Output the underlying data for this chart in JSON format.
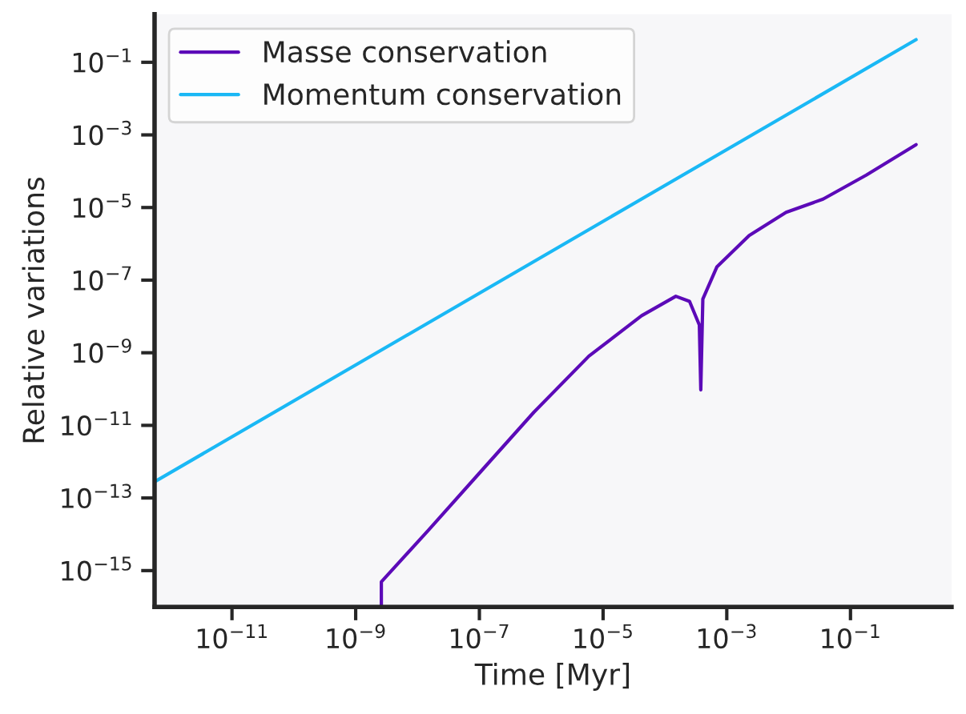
{
  "chart_data": {
    "type": "line",
    "xlabel": "Time [Myr]",
    "ylabel": "Relative variations",
    "log": "xy",
    "grid": false,
    "legend": "top left",
    "xlim": [
      5.6e-13,
      4.3
    ],
    "ylim": [
      1e-16,
      2.1
    ],
    "xticks": [
      {
        "value": 1e-11,
        "label": "10$^{−11}$"
      },
      {
        "value": 1e-09,
        "label": "10$^{−9}$"
      },
      {
        "value": 1e-07,
        "label": "10$^{−7}$"
      },
      {
        "value": 1e-05,
        "label": "10$^{−5}$"
      },
      {
        "value": 0.001,
        "label": "10$^{−3}$"
      },
      {
        "value": 0.1,
        "label": "10$^{−1}$"
      }
    ],
    "yticks": [
      {
        "value": 1e-15,
        "label": "10$^{−15}$"
      },
      {
        "value": 1e-13,
        "label": "10$^{−13}$"
      },
      {
        "value": 1e-11,
        "label": "10$^{−11}$"
      },
      {
        "value": 1e-09,
        "label": "10$^{−9}$"
      },
      {
        "value": 1e-07,
        "label": "10$^{−7}$"
      },
      {
        "value": 1e-05,
        "label": "10$^{−5}$"
      },
      {
        "value": 0.001,
        "label": "10$^{−3}$"
      },
      {
        "value": 0.1,
        "label": "10$^{−1}$"
      }
    ],
    "series": [
      {
        "name": "Masse conservation",
        "color": "#5c0ab8",
        "x": [
          2.6e-09,
          2.6e-09,
          1.5e-08,
          1.1e-07,
          7.6e-07,
          5.9e-06,
          4.2e-05,
          0.00015,
          0.00025,
          0.00036,
          0.00038,
          0.00041,
          0.00069,
          0.0023,
          0.0091,
          0.036,
          0.18,
          1.15
        ],
        "values": [
          1e-16,
          4.9e-16,
          1.3e-14,
          5.8e-13,
          2.3e-11,
          8.1e-10,
          1.05e-08,
          3.6e-08,
          2.6e-08,
          5.8e-09,
          9.5e-11,
          3e-08,
          2.3e-07,
          1.7e-06,
          7.4e-06,
          1.7e-05,
          7.8e-05,
          0.00054
        ]
      },
      {
        "name": "Momentum conservation",
        "color": "#1ab8f5",
        "x": [
          5.6e-13,
          1.15
        ],
        "values": [
          2.8e-13,
          0.42
        ]
      }
    ]
  }
}
